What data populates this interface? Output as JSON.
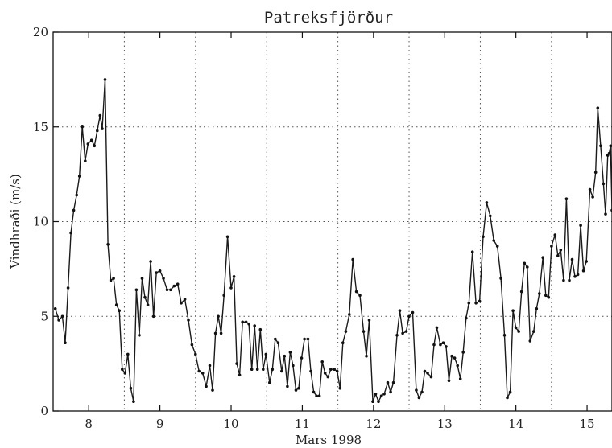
{
  "chart_data": {
    "type": "line",
    "title": "Patreksfjörður",
    "xlabel": "Mars 1998",
    "ylabel": "Vindhraði (m/s)",
    "xlim": [
      7.5,
      15.35
    ],
    "ylim": [
      0,
      20
    ],
    "x_ticks": [
      8,
      9,
      10,
      11,
      12,
      13,
      14,
      15
    ],
    "x_tick_labels": [
      "8",
      "9",
      "10",
      "11",
      "12",
      "13",
      "14",
      "15"
    ],
    "y_ticks": [
      0,
      5,
      10,
      15,
      20
    ],
    "y_tick_labels": [
      "0",
      "5",
      "10",
      "15",
      "20"
    ],
    "grid": true,
    "x_grid_at": [
      8.5,
      9.5,
      10.5,
      11.5,
      12.5,
      13.5,
      14.5
    ],
    "series": [
      {
        "values": [
          [
            7.53,
            5.4
          ],
          [
            7.58,
            4.8
          ],
          [
            7.63,
            5.0
          ],
          [
            7.67,
            3.6
          ],
          [
            7.71,
            6.5
          ],
          [
            7.75,
            9.4
          ],
          [
            7.79,
            10.6
          ],
          [
            7.83,
            11.4
          ],
          [
            7.87,
            12.4
          ],
          [
            7.91,
            15.0
          ],
          [
            7.95,
            13.2
          ],
          [
            7.99,
            14.1
          ],
          [
            8.04,
            14.3
          ],
          [
            8.08,
            14.0
          ],
          [
            8.12,
            14.8
          ],
          [
            8.16,
            15.6
          ],
          [
            8.19,
            14.9
          ],
          [
            8.23,
            17.5
          ],
          [
            8.27,
            8.8
          ],
          [
            8.31,
            6.9
          ],
          [
            8.35,
            7.0
          ],
          [
            8.39,
            5.6
          ],
          [
            8.43,
            5.3
          ],
          [
            8.47,
            2.2
          ],
          [
            8.51,
            2.0
          ],
          [
            8.55,
            3.0
          ],
          [
            8.59,
            1.2
          ],
          [
            8.63,
            0.5
          ],
          [
            8.67,
            6.4
          ],
          [
            8.71,
            4.0
          ],
          [
            8.75,
            7.0
          ],
          [
            8.79,
            6.0
          ],
          [
            8.83,
            5.6
          ],
          [
            8.87,
            7.9
          ],
          [
            8.91,
            5.0
          ],
          [
            8.95,
            7.3
          ],
          [
            9.0,
            7.4
          ],
          [
            9.05,
            7.0
          ],
          [
            9.1,
            6.4
          ],
          [
            9.15,
            6.4
          ],
          [
            9.2,
            6.6
          ],
          [
            9.25,
            6.7
          ],
          [
            9.3,
            5.7
          ],
          [
            9.35,
            5.9
          ],
          [
            9.4,
            4.8
          ],
          [
            9.45,
            3.5
          ],
          [
            9.5,
            3.0
          ],
          [
            9.55,
            2.1
          ],
          [
            9.6,
            2.0
          ],
          [
            9.65,
            1.3
          ],
          [
            9.7,
            2.4
          ],
          [
            9.74,
            1.1
          ],
          [
            9.78,
            4.1
          ],
          [
            9.82,
            5.0
          ],
          [
            9.86,
            4.1
          ],
          [
            9.9,
            6.1
          ],
          [
            9.95,
            9.2
          ],
          [
            10.0,
            6.5
          ],
          [
            10.04,
            7.1
          ],
          [
            10.08,
            2.5
          ],
          [
            10.12,
            1.9
          ],
          [
            10.16,
            4.7
          ],
          [
            10.21,
            4.7
          ],
          [
            10.25,
            4.6
          ],
          [
            10.29,
            2.2
          ],
          [
            10.33,
            4.5
          ],
          [
            10.37,
            2.2
          ],
          [
            10.41,
            4.3
          ],
          [
            10.45,
            2.2
          ],
          [
            10.49,
            3.0
          ],
          [
            10.54,
            1.5
          ],
          [
            10.58,
            2.2
          ],
          [
            10.62,
            3.8
          ],
          [
            10.66,
            3.6
          ],
          [
            10.71,
            2.1
          ],
          [
            10.75,
            2.9
          ],
          [
            10.79,
            1.3
          ],
          [
            10.83,
            3.1
          ],
          [
            10.87,
            2.4
          ],
          [
            10.91,
            1.1
          ],
          [
            10.95,
            1.2
          ],
          [
            10.99,
            2.8
          ],
          [
            11.03,
            3.8
          ],
          [
            11.08,
            3.8
          ],
          [
            11.12,
            2.1
          ],
          [
            11.16,
            1.0
          ],
          [
            11.2,
            0.8
          ],
          [
            11.24,
            0.8
          ],
          [
            11.28,
            2.6
          ],
          [
            11.32,
            2.0
          ],
          [
            11.36,
            1.8
          ],
          [
            11.4,
            2.2
          ],
          [
            11.45,
            2.2
          ],
          [
            11.49,
            2.1
          ],
          [
            11.53,
            1.2
          ],
          [
            11.57,
            3.6
          ],
          [
            11.61,
            4.2
          ],
          [
            11.66,
            5.1
          ],
          [
            11.71,
            8.0
          ],
          [
            11.76,
            6.3
          ],
          [
            11.81,
            6.1
          ],
          [
            11.86,
            4.2
          ],
          [
            11.9,
            2.9
          ],
          [
            11.94,
            4.8
          ],
          [
            11.99,
            0.5
          ],
          [
            12.03,
            0.9
          ],
          [
            12.07,
            0.5
          ],
          [
            12.11,
            0.8
          ],
          [
            12.15,
            0.9
          ],
          [
            12.2,
            1.5
          ],
          [
            12.24,
            1.0
          ],
          [
            12.28,
            1.5
          ],
          [
            12.33,
            4.0
          ],
          [
            12.37,
            5.3
          ],
          [
            12.41,
            4.1
          ],
          [
            12.46,
            4.2
          ],
          [
            12.5,
            5.0
          ],
          [
            12.55,
            5.2
          ],
          [
            12.6,
            1.1
          ],
          [
            12.64,
            0.7
          ],
          [
            12.68,
            1.0
          ],
          [
            12.72,
            2.1
          ],
          [
            12.76,
            2.0
          ],
          [
            12.81,
            1.8
          ],
          [
            12.85,
            3.5
          ],
          [
            12.89,
            4.4
          ],
          [
            12.94,
            3.5
          ],
          [
            12.98,
            3.6
          ],
          [
            13.02,
            3.4
          ],
          [
            13.06,
            1.6
          ],
          [
            13.1,
            2.9
          ],
          [
            13.14,
            2.8
          ],
          [
            13.18,
            2.4
          ],
          [
            13.22,
            1.7
          ],
          [
            13.26,
            3.1
          ],
          [
            13.3,
            4.9
          ],
          [
            13.34,
            5.7
          ],
          [
            13.39,
            8.4
          ],
          [
            13.44,
            5.7
          ],
          [
            13.49,
            5.8
          ],
          [
            13.54,
            9.2
          ],
          [
            13.59,
            11.0
          ],
          [
            13.64,
            10.3
          ],
          [
            13.69,
            9.0
          ],
          [
            13.74,
            8.7
          ],
          [
            13.79,
            7.0
          ],
          [
            13.84,
            4.0
          ],
          [
            13.88,
            0.7
          ],
          [
            13.92,
            1.0
          ],
          [
            13.96,
            5.3
          ],
          [
            14.0,
            4.4
          ],
          [
            14.04,
            4.2
          ],
          [
            14.08,
            6.3
          ],
          [
            14.12,
            7.8
          ],
          [
            14.16,
            7.6
          ],
          [
            14.2,
            3.7
          ],
          [
            14.25,
            4.2
          ],
          [
            14.29,
            5.4
          ],
          [
            14.33,
            6.2
          ],
          [
            14.38,
            8.1
          ],
          [
            14.42,
            6.1
          ],
          [
            14.46,
            6.0
          ],
          [
            14.5,
            8.7
          ],
          [
            14.55,
            9.3
          ],
          [
            14.59,
            8.2
          ],
          [
            14.63,
            8.5
          ],
          [
            14.67,
            6.9
          ],
          [
            14.71,
            11.2
          ],
          [
            14.75,
            6.9
          ],
          [
            14.79,
            8.0
          ],
          [
            14.83,
            7.1
          ],
          [
            14.87,
            7.2
          ],
          [
            14.91,
            9.8
          ],
          [
            14.95,
            7.4
          ],
          [
            14.99,
            7.9
          ],
          [
            15.04,
            11.7
          ],
          [
            15.08,
            11.3
          ],
          [
            15.12,
            12.6
          ],
          [
            15.15,
            16.0
          ],
          [
            15.19,
            14.0
          ],
          [
            15.23,
            12.0
          ],
          [
            15.26,
            10.4
          ],
          [
            15.29,
            13.5
          ],
          [
            15.31,
            13.6
          ],
          [
            15.33,
            14.0
          ],
          [
            15.35,
            10.6
          ]
        ]
      }
    ]
  }
}
